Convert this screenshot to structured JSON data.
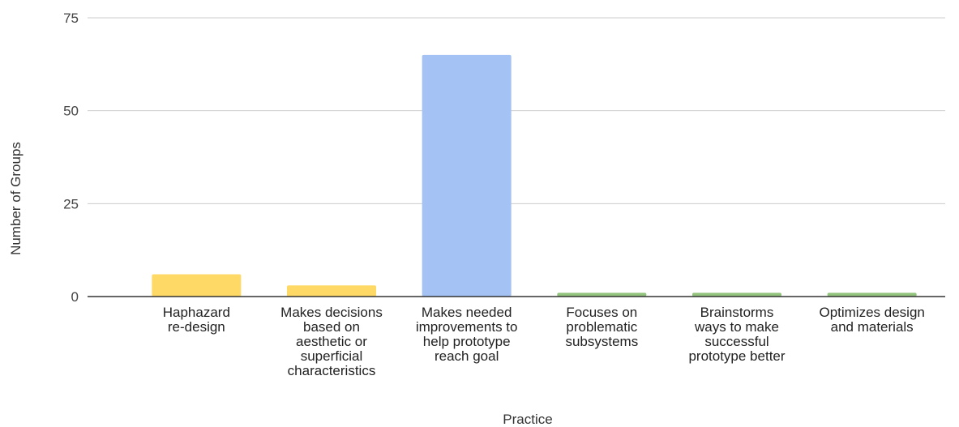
{
  "chart_data": {
    "type": "bar",
    "title": "",
    "xlabel": "Practice",
    "ylabel": "Number of Groups",
    "ylim": [
      0,
      75
    ],
    "yticks": [
      0,
      25,
      50,
      75
    ],
    "grid": true,
    "legend": "none",
    "categories": [
      [
        "Haphazard",
        "re-design"
      ],
      [
        "Makes decisions",
        "based on",
        "aesthetic or",
        "superficial",
        "characteristics"
      ],
      [
        "Makes needed",
        "improvements to",
        "help prototype",
        "reach goal"
      ],
      [
        "Focuses on",
        "problematic",
        "subsystems"
      ],
      [
        "Brainstorms",
        "ways to make",
        "successful",
        "prototype better"
      ],
      [
        "Optimizes design",
        "and materials"
      ]
    ],
    "values": [
      6,
      3,
      65,
      1,
      1,
      1
    ],
    "bar_colors": [
      "#FFD966",
      "#FFD966",
      "#A4C2F4",
      "#93C47D",
      "#93C47D",
      "#93C47D"
    ]
  },
  "colors": {
    "gridline": "#cccccc",
    "baseline": "#333333"
  }
}
